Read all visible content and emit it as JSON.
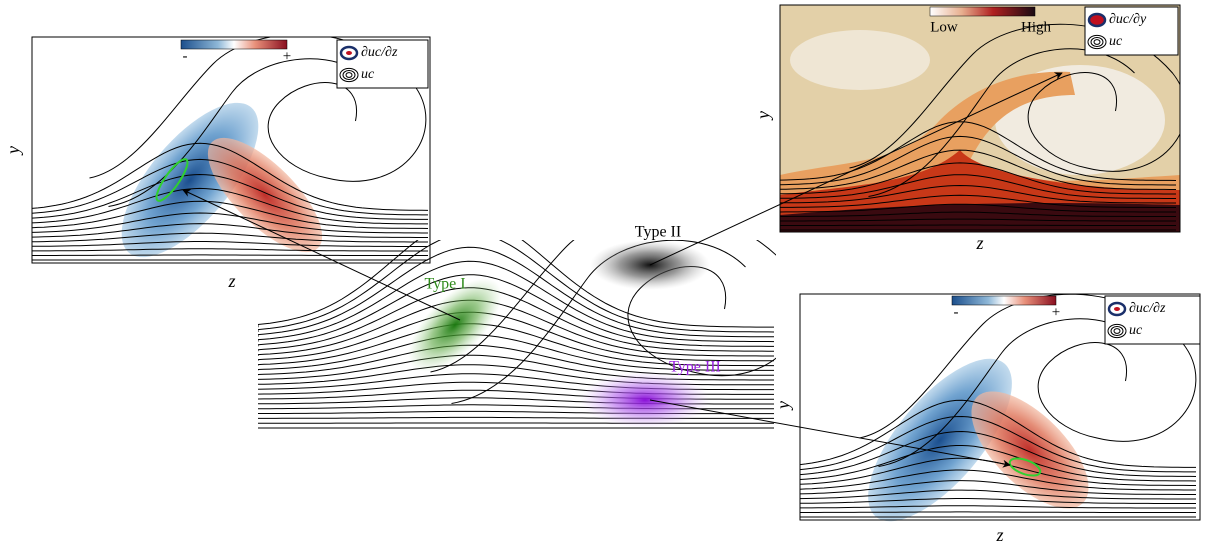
{
  "panels": [
    {
      "y_label": "y",
      "x_label": "z",
      "colorbar": {
        "min_label": "-",
        "max_label": "+"
      },
      "legend": [
        "∂uc/∂z",
        "uc"
      ]
    },
    {
      "y_label": "y",
      "x_label": "z",
      "colorbar": {
        "min_label": "Low",
        "max_label": "High"
      },
      "legend": [
        "∂uc/∂y",
        "uc"
      ]
    },
    {
      "y_label": "y",
      "x_label": "z",
      "colorbar": {
        "min_label": "-",
        "max_label": "+"
      },
      "legend": [
        "∂uc/∂z",
        "uc"
      ]
    }
  ],
  "center": {
    "labels": [
      "Type I",
      "Type II",
      "Type III"
    ]
  }
}
